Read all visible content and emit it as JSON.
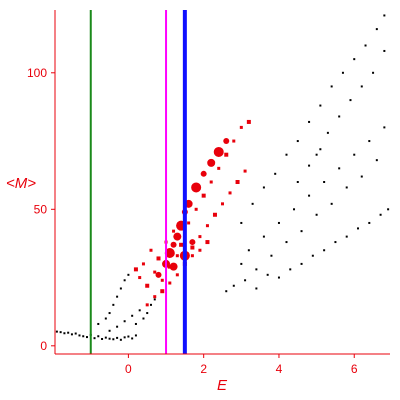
{
  "chart_data": {
    "type": "scatter",
    "title": "",
    "xlabel": "E",
    "ylabel": "<M>",
    "xlim": [
      -1.95,
      6.95
    ],
    "ylim": [
      -3,
      123
    ],
    "x_ticks": [
      0,
      2,
      4,
      6
    ],
    "y_ticks": [
      0,
      50,
      100
    ],
    "grid": false,
    "legend": "none",
    "colors": {
      "axis": "#e8000b",
      "black_points": "#000000",
      "red_points": "#e8000b",
      "line_green": "#1a8a1a",
      "line_magenta": "#ff00ff",
      "line_blue": "#1010ff"
    },
    "vertical_lines": [
      {
        "x": -1.0,
        "color": "green"
      },
      {
        "x": 1.0,
        "color": "magenta"
      },
      {
        "x": 1.5,
        "color": "blue"
      }
    ],
    "series": [
      {
        "marker": "small black dots",
        "points": [
          [
            -1.9,
            5.2
          ],
          [
            -1.8,
            5.0
          ],
          [
            -1.7,
            4.6
          ],
          [
            -1.6,
            4.8
          ],
          [
            -1.5,
            4.2
          ],
          [
            -1.4,
            4.5
          ],
          [
            -1.3,
            3.8
          ],
          [
            -1.2,
            3.5
          ],
          [
            -1.1,
            3.2
          ],
          [
            -1.0,
            4.0
          ],
          [
            -0.9,
            2.8
          ],
          [
            -0.8,
            3.5
          ],
          [
            -0.7,
            2.5
          ],
          [
            -0.6,
            3.0
          ],
          [
            -0.5,
            2.6
          ],
          [
            -0.4,
            2.4
          ],
          [
            -0.3,
            2.9
          ],
          [
            -0.2,
            2.2
          ],
          [
            -0.1,
            3.1
          ],
          [
            0.0,
            3.4
          ],
          [
            0.1,
            2.7
          ],
          [
            0.2,
            3.8
          ],
          [
            -0.8,
            8
          ],
          [
            -0.6,
            10
          ],
          [
            -0.5,
            12
          ],
          [
            -0.4,
            15
          ],
          [
            -0.3,
            18
          ],
          [
            -0.2,
            21
          ],
          [
            -0.1,
            24
          ],
          [
            0.0,
            26
          ],
          [
            -0.5,
            5.5
          ],
          [
            -0.3,
            7
          ],
          [
            -0.1,
            9
          ],
          [
            0.1,
            11
          ],
          [
            0.2,
            8
          ],
          [
            0.3,
            13
          ],
          [
            0.4,
            10
          ],
          [
            0.5,
            12
          ],
          [
            0.6,
            15
          ],
          [
            0.7,
            17
          ],
          [
            3.0,
            30
          ],
          [
            3.2,
            35
          ],
          [
            3.4,
            28
          ],
          [
            3.6,
            40
          ],
          [
            3.8,
            33
          ],
          [
            4.0,
            45
          ],
          [
            4.2,
            38
          ],
          [
            4.4,
            50
          ],
          [
            4.6,
            42
          ],
          [
            4.8,
            55
          ],
          [
            5.0,
            48
          ],
          [
            5.2,
            60
          ],
          [
            5.4,
            52
          ],
          [
            5.6,
            65
          ],
          [
            5.8,
            58
          ],
          [
            6.0,
            70
          ],
          [
            6.2,
            62
          ],
          [
            6.4,
            75
          ],
          [
            6.6,
            68
          ],
          [
            6.8,
            80
          ],
          [
            3.0,
            45
          ],
          [
            3.3,
            52
          ],
          [
            3.6,
            58
          ],
          [
            3.9,
            63
          ],
          [
            4.2,
            70
          ],
          [
            4.5,
            75
          ],
          [
            4.8,
            82
          ],
          [
            5.1,
            88
          ],
          [
            5.4,
            95
          ],
          [
            5.7,
            100
          ],
          [
            6.0,
            105
          ],
          [
            6.3,
            110
          ],
          [
            6.6,
            116
          ],
          [
            6.8,
            121
          ],
          [
            2.6,
            20
          ],
          [
            2.8,
            22
          ],
          [
            3.1,
            24
          ],
          [
            3.4,
            21
          ],
          [
            3.7,
            26
          ],
          [
            4.0,
            25
          ],
          [
            4.3,
            28
          ],
          [
            4.6,
            30
          ],
          [
            4.9,
            33
          ],
          [
            5.2,
            35
          ],
          [
            5.5,
            38
          ],
          [
            5.8,
            40
          ],
          [
            6.1,
            43
          ],
          [
            6.4,
            45
          ],
          [
            6.7,
            48
          ],
          [
            6.9,
            50
          ],
          [
            5.0,
            70
          ],
          [
            5.3,
            78
          ],
          [
            5.6,
            84
          ],
          [
            5.9,
            90
          ],
          [
            6.2,
            95
          ],
          [
            6.5,
            100
          ],
          [
            6.8,
            108
          ],
          [
            4.5,
            60
          ],
          [
            4.8,
            66
          ],
          [
            5.1,
            72
          ]
        ]
      },
      {
        "marker": "red squares and dots",
        "points": [
          [
            0.2,
            28
          ],
          [
            0.3,
            25
          ],
          [
            0.4,
            30
          ],
          [
            0.5,
            22
          ],
          [
            0.6,
            35
          ],
          [
            0.7,
            27
          ],
          [
            0.8,
            32
          ],
          [
            0.9,
            24
          ],
          [
            1.0,
            38
          ],
          [
            1.1,
            29
          ],
          [
            1.2,
            42
          ],
          [
            1.3,
            33
          ],
          [
            1.4,
            37
          ],
          [
            1.5,
            28
          ],
          [
            1.6,
            45
          ],
          [
            1.7,
            36
          ],
          [
            1.8,
            50
          ],
          [
            1.9,
            40
          ],
          [
            2.0,
            55
          ],
          [
            2.1,
            44
          ],
          [
            2.2,
            60
          ],
          [
            2.3,
            48
          ],
          [
            2.4,
            65
          ],
          [
            2.5,
            52
          ],
          [
            2.6,
            70
          ],
          [
            2.7,
            56
          ],
          [
            2.8,
            75
          ],
          [
            2.9,
            60
          ],
          [
            3.0,
            80
          ],
          [
            3.1,
            64
          ],
          [
            3.2,
            82
          ],
          [
            0.5,
            15
          ],
          [
            0.7,
            18
          ],
          [
            0.9,
            20
          ],
          [
            1.1,
            23
          ],
          [
            1.3,
            26
          ],
          [
            1.5,
            30
          ],
          [
            1.7,
            33
          ],
          [
            1.9,
            35
          ],
          [
            2.1,
            38
          ]
        ]
      },
      {
        "marker": "large red dots",
        "points": [
          [
            0.8,
            26
          ],
          [
            1.0,
            30
          ],
          [
            1.1,
            34
          ],
          [
            1.2,
            37
          ],
          [
            1.3,
            40
          ],
          [
            1.4,
            44
          ],
          [
            1.5,
            49
          ],
          [
            1.6,
            52
          ],
          [
            1.8,
            58
          ],
          [
            2.0,
            63
          ],
          [
            2.2,
            67
          ],
          [
            2.4,
            71
          ],
          [
            2.6,
            75
          ],
          [
            1.2,
            29
          ],
          [
            1.5,
            33
          ],
          [
            1.7,
            38
          ]
        ]
      }
    ]
  }
}
